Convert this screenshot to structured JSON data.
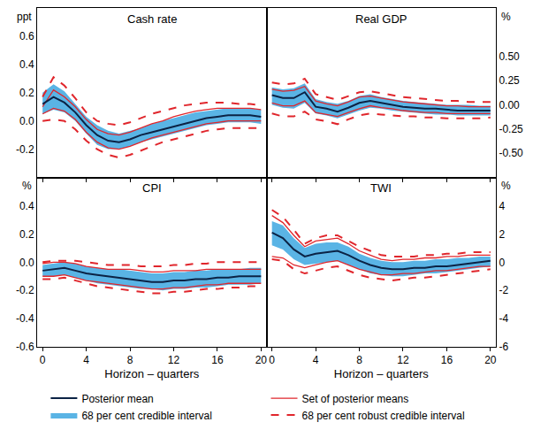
{
  "chart_data": [
    {
      "type": "line",
      "title": "Cash rate",
      "ylabel": "ppt",
      "legend": "bottom",
      "tick_labels": "y",
      "x": [
        0,
        1,
        2,
        3,
        4,
        5,
        6,
        7,
        8,
        9,
        10,
        11,
        12,
        13,
        14,
        15,
        16,
        17,
        18,
        19,
        20
      ],
      "xlim": [
        -0.5,
        20.5
      ],
      "xticks": [
        0,
        4,
        8,
        12,
        16,
        20
      ],
      "ylim": [
        -0.4,
        0.8
      ],
      "yticks": [
        -0.2,
        {
          "value": 0,
          "label": "0.0"
        },
        0.2,
        0.4,
        0.6
      ],
      "grid": false,
      "series": [
        {
          "name": "Posterior mean",
          "type": "line",
          "color": "#0b2345",
          "line_style": "solid",
          "values": [
            0.12,
            0.17,
            0.13,
            0.06,
            -0.03,
            -0.1,
            -0.14,
            -0.15,
            -0.13,
            -0.1,
            -0.08,
            -0.06,
            -0.04,
            -0.02,
            0.0,
            0.02,
            0.03,
            0.04,
            0.04,
            0.04,
            0.03
          ]
        },
        {
          "name": "Set of posterior means",
          "type": "line",
          "color": "#e0262c",
          "line_style": "solid",
          "lower": [
            0.05,
            0.09,
            0.07,
            0.01,
            -0.08,
            -0.15,
            -0.19,
            -0.2,
            -0.18,
            -0.15,
            -0.12,
            -0.1,
            -0.08,
            -0.06,
            -0.04,
            -0.02,
            -0.01,
            0.0,
            0.0,
            0.0,
            0.0
          ],
          "upper": [
            0.1,
            0.22,
            0.17,
            0.1,
            0.01,
            -0.06,
            -0.09,
            -0.1,
            -0.08,
            -0.05,
            -0.02,
            0.0,
            0.03,
            0.05,
            0.07,
            0.08,
            0.09,
            0.09,
            0.09,
            0.09,
            0.08
          ]
        },
        {
          "name": "68 per cent credible interval",
          "type": "band",
          "color": "#5ab4e5",
          "lower": [
            0.05,
            0.08,
            0.06,
            0.0,
            -0.09,
            -0.17,
            -0.2,
            -0.2,
            -0.18,
            -0.15,
            -0.13,
            -0.11,
            -0.09,
            -0.07,
            -0.05,
            -0.03,
            -0.02,
            -0.01,
            -0.01,
            -0.01,
            -0.02
          ],
          "upper": [
            0.2,
            0.26,
            0.21,
            0.12,
            0.03,
            -0.03,
            -0.07,
            -0.09,
            -0.07,
            -0.05,
            -0.02,
            0.0,
            0.02,
            0.04,
            0.06,
            0.07,
            0.08,
            0.09,
            0.09,
            0.09,
            0.08
          ]
        },
        {
          "name": "68 per cent robust credible interval",
          "type": "line",
          "color": "#e0262c",
          "line_style": "dashed",
          "lower": [
            0.0,
            0.01,
            0.0,
            -0.06,
            -0.14,
            -0.2,
            -0.24,
            -0.26,
            -0.24,
            -0.21,
            -0.18,
            -0.15,
            -0.13,
            -0.11,
            -0.09,
            -0.07,
            -0.06,
            -0.05,
            -0.05,
            -0.05,
            -0.05
          ],
          "upper": [
            0.17,
            0.31,
            0.25,
            0.16,
            0.06,
            0.0,
            -0.02,
            -0.03,
            -0.01,
            0.02,
            0.05,
            0.07,
            0.09,
            0.11,
            0.12,
            0.13,
            0.13,
            0.13,
            0.12,
            0.12,
            0.11
          ]
        }
      ]
    },
    {
      "type": "line",
      "title": "Real GDP",
      "ylabel": "%",
      "legend": "bottom",
      "tick_labels": "y",
      "x": [
        0,
        1,
        2,
        3,
        4,
        5,
        6,
        7,
        8,
        9,
        10,
        11,
        12,
        13,
        14,
        15,
        16,
        17,
        18,
        19,
        20
      ],
      "xlim": [
        -0.5,
        20.5
      ],
      "xticks": [
        0,
        4,
        8,
        12,
        16,
        20
      ],
      "ylim": [
        -0.75,
        1.0
      ],
      "yticks": [
        {
          "value": -0.5,
          "label": "-0.50"
        },
        -0.25,
        {
          "value": 0,
          "label": "0.00"
        },
        0.25,
        {
          "value": 0.5,
          "label": "0.50"
        }
      ],
      "grid": false,
      "series": [
        {
          "name": "Posterior mean",
          "type": "line",
          "color": "#0b2345",
          "line_style": "solid",
          "values": [
            0.1,
            0.07,
            0.07,
            0.13,
            -0.02,
            -0.04,
            -0.07,
            -0.03,
            0.02,
            0.04,
            0.02,
            0.0,
            -0.02,
            -0.03,
            -0.04,
            -0.04,
            -0.05,
            -0.06,
            -0.06,
            -0.06,
            -0.06
          ]
        },
        {
          "name": "Set of posterior means",
          "type": "line",
          "color": "#e0262c",
          "line_style": "solid",
          "lower": [
            0.02,
            -0.01,
            -0.01,
            0.04,
            -0.08,
            -0.1,
            -0.12,
            -0.08,
            -0.04,
            -0.01,
            -0.03,
            -0.04,
            -0.06,
            -0.07,
            -0.08,
            -0.08,
            -0.09,
            -0.09,
            -0.09,
            -0.09,
            -0.09
          ],
          "upper": [
            0.16,
            0.14,
            0.15,
            0.19,
            0.04,
            0.01,
            -0.01,
            0.03,
            0.08,
            0.09,
            0.07,
            0.05,
            0.03,
            0.02,
            0.01,
            0.0,
            -0.01,
            -0.01,
            -0.02,
            -0.02,
            -0.02
          ]
        },
        {
          "name": "68 per cent credible interval",
          "type": "band",
          "color": "#5ab4e5",
          "lower": [
            0.0,
            -0.03,
            -0.04,
            0.02,
            -0.09,
            -0.11,
            -0.14,
            -0.1,
            -0.06,
            -0.03,
            -0.04,
            -0.06,
            -0.07,
            -0.08,
            -0.09,
            -0.1,
            -0.1,
            -0.11,
            -0.11,
            -0.11,
            -0.11
          ],
          "upper": [
            0.18,
            0.16,
            0.17,
            0.22,
            0.06,
            0.03,
            0.01,
            0.04,
            0.09,
            0.11,
            0.08,
            0.06,
            0.04,
            0.03,
            0.02,
            0.01,
            0.0,
            0.0,
            0.0,
            -0.01,
            -0.01
          ]
        },
        {
          "name": "68 per cent robust credible interval",
          "type": "line",
          "color": "#e0262c",
          "line_style": "dashed",
          "lower": [
            -0.09,
            -0.12,
            -0.12,
            -0.07,
            -0.15,
            -0.17,
            -0.2,
            -0.15,
            -0.11,
            -0.09,
            -0.1,
            -0.11,
            -0.12,
            -0.12,
            -0.13,
            -0.13,
            -0.14,
            -0.14,
            -0.14,
            -0.14,
            -0.13
          ],
          "upper": [
            0.23,
            0.21,
            0.22,
            0.27,
            0.11,
            0.08,
            0.05,
            0.09,
            0.13,
            0.14,
            0.12,
            0.1,
            0.08,
            0.07,
            0.06,
            0.05,
            0.04,
            0.04,
            0.03,
            0.03,
            0.03
          ]
        }
      ]
    },
    {
      "type": "line",
      "title": "CPI",
      "ylabel": "%",
      "xlabel": "Horizon – quarters",
      "legend": "bottom",
      "x": [
        0,
        1,
        2,
        3,
        4,
        5,
        6,
        7,
        8,
        9,
        10,
        11,
        12,
        13,
        14,
        15,
        16,
        17,
        18,
        19,
        20
      ],
      "xlim": [
        -0.5,
        20.5
      ],
      "xticks": [
        0,
        4,
        8,
        12,
        16,
        20
      ],
      "ylim": [
        -0.6,
        0.6
      ],
      "yticks": [
        -0.6,
        -0.4,
        -0.2,
        {
          "value": 0,
          "label": "0.0"
        },
        0.2,
        0.4
      ],
      "grid": false,
      "series": [
        {
          "name": "Posterior mean",
          "type": "line",
          "color": "#0b2345",
          "line_style": "solid",
          "values": [
            -0.06,
            -0.05,
            -0.04,
            -0.06,
            -0.08,
            -0.09,
            -0.1,
            -0.11,
            -0.12,
            -0.13,
            -0.14,
            -0.14,
            -0.13,
            -0.13,
            -0.12,
            -0.12,
            -0.11,
            -0.11,
            -0.1,
            -0.1,
            -0.1
          ]
        },
        {
          "name": "Set of posterior means",
          "type": "line",
          "color": "#e0262c",
          "line_style": "solid",
          "lower": [
            -0.1,
            -0.1,
            -0.09,
            -0.11,
            -0.13,
            -0.14,
            -0.15,
            -0.16,
            -0.17,
            -0.18,
            -0.19,
            -0.19,
            -0.18,
            -0.18,
            -0.17,
            -0.16,
            -0.16,
            -0.15,
            -0.15,
            -0.15,
            -0.15
          ],
          "upper": [
            -0.01,
            0.0,
            0.0,
            -0.01,
            -0.03,
            -0.04,
            -0.05,
            -0.05,
            -0.05,
            -0.06,
            -0.07,
            -0.07,
            -0.06,
            -0.06,
            -0.06,
            -0.05,
            -0.05,
            -0.05,
            -0.05,
            -0.05,
            -0.05
          ]
        },
        {
          "name": "68 per cent credible interval",
          "type": "band",
          "color": "#5ab4e5",
          "lower": [
            -0.1,
            -0.1,
            -0.09,
            -0.11,
            -0.13,
            -0.15,
            -0.16,
            -0.17,
            -0.18,
            -0.19,
            -0.19,
            -0.2,
            -0.19,
            -0.19,
            -0.18,
            -0.18,
            -0.17,
            -0.16,
            -0.16,
            -0.16,
            -0.15
          ],
          "upper": [
            -0.02,
            -0.01,
            0.0,
            -0.01,
            -0.03,
            -0.04,
            -0.05,
            -0.05,
            -0.06,
            -0.07,
            -0.08,
            -0.08,
            -0.07,
            -0.07,
            -0.06,
            -0.06,
            -0.05,
            -0.05,
            -0.05,
            -0.04,
            -0.04
          ]
        },
        {
          "name": "68 per cent robust credible interval",
          "type": "line",
          "color": "#e0262c",
          "line_style": "dashed",
          "lower": [
            -0.12,
            -0.12,
            -0.11,
            -0.13,
            -0.15,
            -0.17,
            -0.18,
            -0.19,
            -0.2,
            -0.21,
            -0.22,
            -0.22,
            -0.21,
            -0.21,
            -0.2,
            -0.19,
            -0.19,
            -0.18,
            -0.18,
            -0.17,
            -0.17
          ],
          "upper": [
            0.0,
            0.01,
            0.01,
            0.01,
            0.0,
            -0.01,
            -0.02,
            -0.02,
            -0.02,
            -0.03,
            -0.03,
            -0.03,
            -0.02,
            -0.02,
            -0.01,
            -0.01,
            0.0,
            0.0,
            0.0,
            0.0,
            0.0
          ]
        }
      ]
    },
    {
      "type": "line",
      "title": "TWI",
      "ylabel": "%",
      "xlabel": "Horizon – quarters",
      "legend": "bottom",
      "x": [
        0,
        1,
        2,
        3,
        4,
        5,
        6,
        7,
        8,
        9,
        10,
        11,
        12,
        13,
        14,
        15,
        16,
        17,
        18,
        19,
        20
      ],
      "xlim": [
        -0.5,
        20.5
      ],
      "xticks": [
        0,
        4,
        8,
        12,
        16,
        20
      ],
      "ylim": [
        -6,
        6
      ],
      "yticks": [
        -6,
        -4,
        -2,
        0,
        2,
        4
      ],
      "grid": false,
      "series": [
        {
          "name": "Posterior mean",
          "type": "line",
          "color": "#0b2345",
          "line_style": "solid",
          "values": [
            2.1,
            1.7,
            0.9,
            0.4,
            0.6,
            0.7,
            0.8,
            0.5,
            0.1,
            -0.2,
            -0.4,
            -0.5,
            -0.5,
            -0.4,
            -0.4,
            -0.3,
            -0.3,
            -0.2,
            -0.1,
            0.0,
            0.1
          ]
        },
        {
          "name": "Set of posterior means",
          "type": "line",
          "color": "#e0262c",
          "line_style": "solid",
          "lower": [
            0.4,
            0.3,
            -0.2,
            -0.4,
            -0.2,
            0.0,
            0.1,
            -0.2,
            -0.5,
            -0.7,
            -0.9,
            -0.9,
            -0.8,
            -0.8,
            -0.7,
            -0.6,
            -0.6,
            -0.5,
            -0.4,
            -0.3,
            -0.3
          ],
          "upper": [
            3.3,
            2.8,
            1.9,
            1.1,
            1.5,
            1.6,
            1.7,
            1.3,
            0.8,
            0.5,
            0.2,
            0.1,
            0.2,
            0.2,
            0.3,
            0.3,
            0.4,
            0.4,
            0.5,
            0.5,
            0.5
          ]
        },
        {
          "name": "68 per cent credible interval",
          "type": "band",
          "color": "#5ab4e5",
          "lower": [
            1.2,
            0.9,
            0.2,
            -0.2,
            -0.1,
            0.0,
            0.1,
            -0.2,
            -0.5,
            -0.8,
            -0.9,
            -1.0,
            -1.0,
            -0.9,
            -0.8,
            -0.8,
            -0.7,
            -0.6,
            -0.5,
            -0.4,
            -0.3
          ],
          "upper": [
            2.9,
            2.6,
            1.7,
            1.0,
            1.3,
            1.4,
            1.4,
            1.1,
            0.6,
            0.3,
            0.1,
            0.0,
            0.0,
            0.1,
            0.1,
            0.2,
            0.2,
            0.3,
            0.3,
            0.4,
            0.4
          ]
        },
        {
          "name": "68 per cent robust credible interval",
          "type": "line",
          "color": "#e0262c",
          "line_style": "dashed",
          "lower": [
            0.2,
            0.1,
            -0.5,
            -0.8,
            -0.6,
            -0.4,
            -0.3,
            -0.6,
            -0.9,
            -1.1,
            -1.2,
            -1.3,
            -1.2,
            -1.1,
            -1.1,
            -1.0,
            -0.9,
            -0.8,
            -0.7,
            -0.6,
            -0.5
          ],
          "upper": [
            3.7,
            3.2,
            2.3,
            1.3,
            1.7,
            1.9,
            1.9,
            1.5,
            1.1,
            0.8,
            0.5,
            0.4,
            0.4,
            0.4,
            0.5,
            0.5,
            0.6,
            0.6,
            0.7,
            0.7,
            0.7
          ]
        }
      ]
    }
  ]
}
